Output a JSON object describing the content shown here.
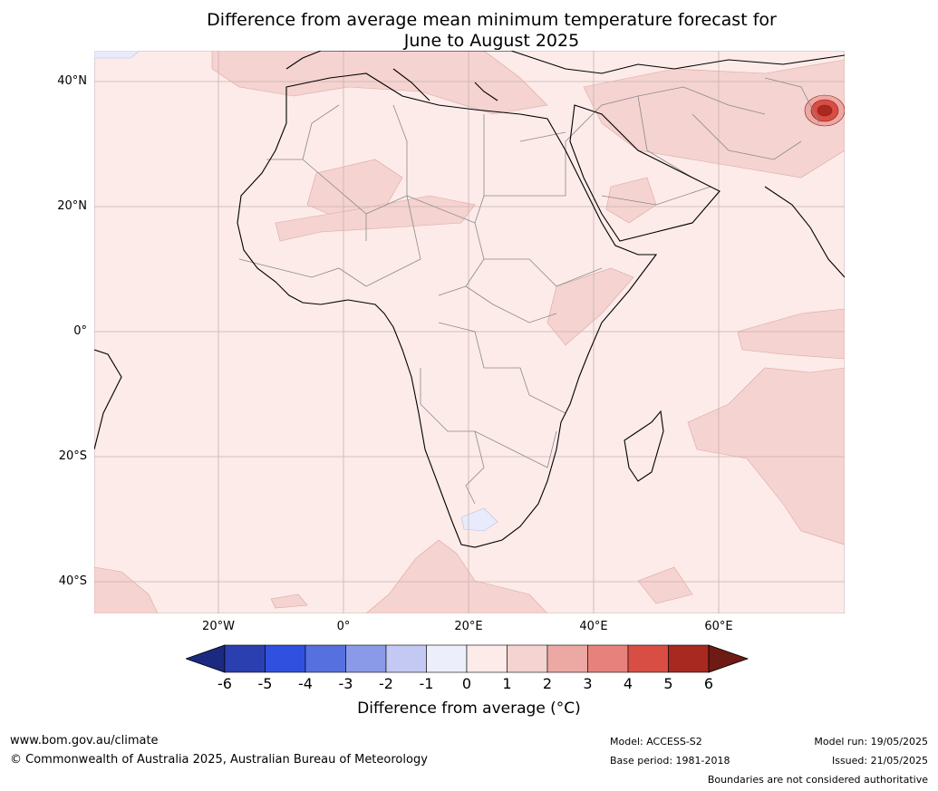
{
  "title_line1": "Difference from average mean minimum temperature forecast for",
  "title_line2": "June to August 2025",
  "map": {
    "background_color": "#fcebe9",
    "lat_labels": [
      "40°N",
      "20°N",
      "0°",
      "20°S",
      "40°S"
    ],
    "lon_labels": [
      "20°W",
      "0°",
      "20°E",
      "40°E",
      "60°E"
    ]
  },
  "colorbar": {
    "ticks": [
      "-6",
      "-5",
      "-4",
      "-3",
      "-2",
      "-1",
      "0",
      "1",
      "2",
      "3",
      "4",
      "5",
      "6"
    ],
    "colors": [
      "#1b2a80",
      "#2b3fb0",
      "#3050e0",
      "#5670e0",
      "#8a9ae8",
      "#c3c9f2",
      "#eceefb",
      "#fcebe9",
      "#f5d3d0",
      "#eca8a3",
      "#e6827b",
      "#d84d44",
      "#a8291f",
      "#6e1b14"
    ],
    "label": "Difference from average (°C)"
  },
  "footer": {
    "website": "www.bom.gov.au/climate",
    "copyright": "© Commonwealth of Australia 2025, Australian Bureau of Meteorology",
    "model": "Model: ACCESS-S2",
    "base_period": "Base period: 1981-2018",
    "model_run": "Model run: 19/05/2025",
    "issued": "Issued: 21/05/2025",
    "disclaimer": "Boundaries are not considered authoritative"
  }
}
